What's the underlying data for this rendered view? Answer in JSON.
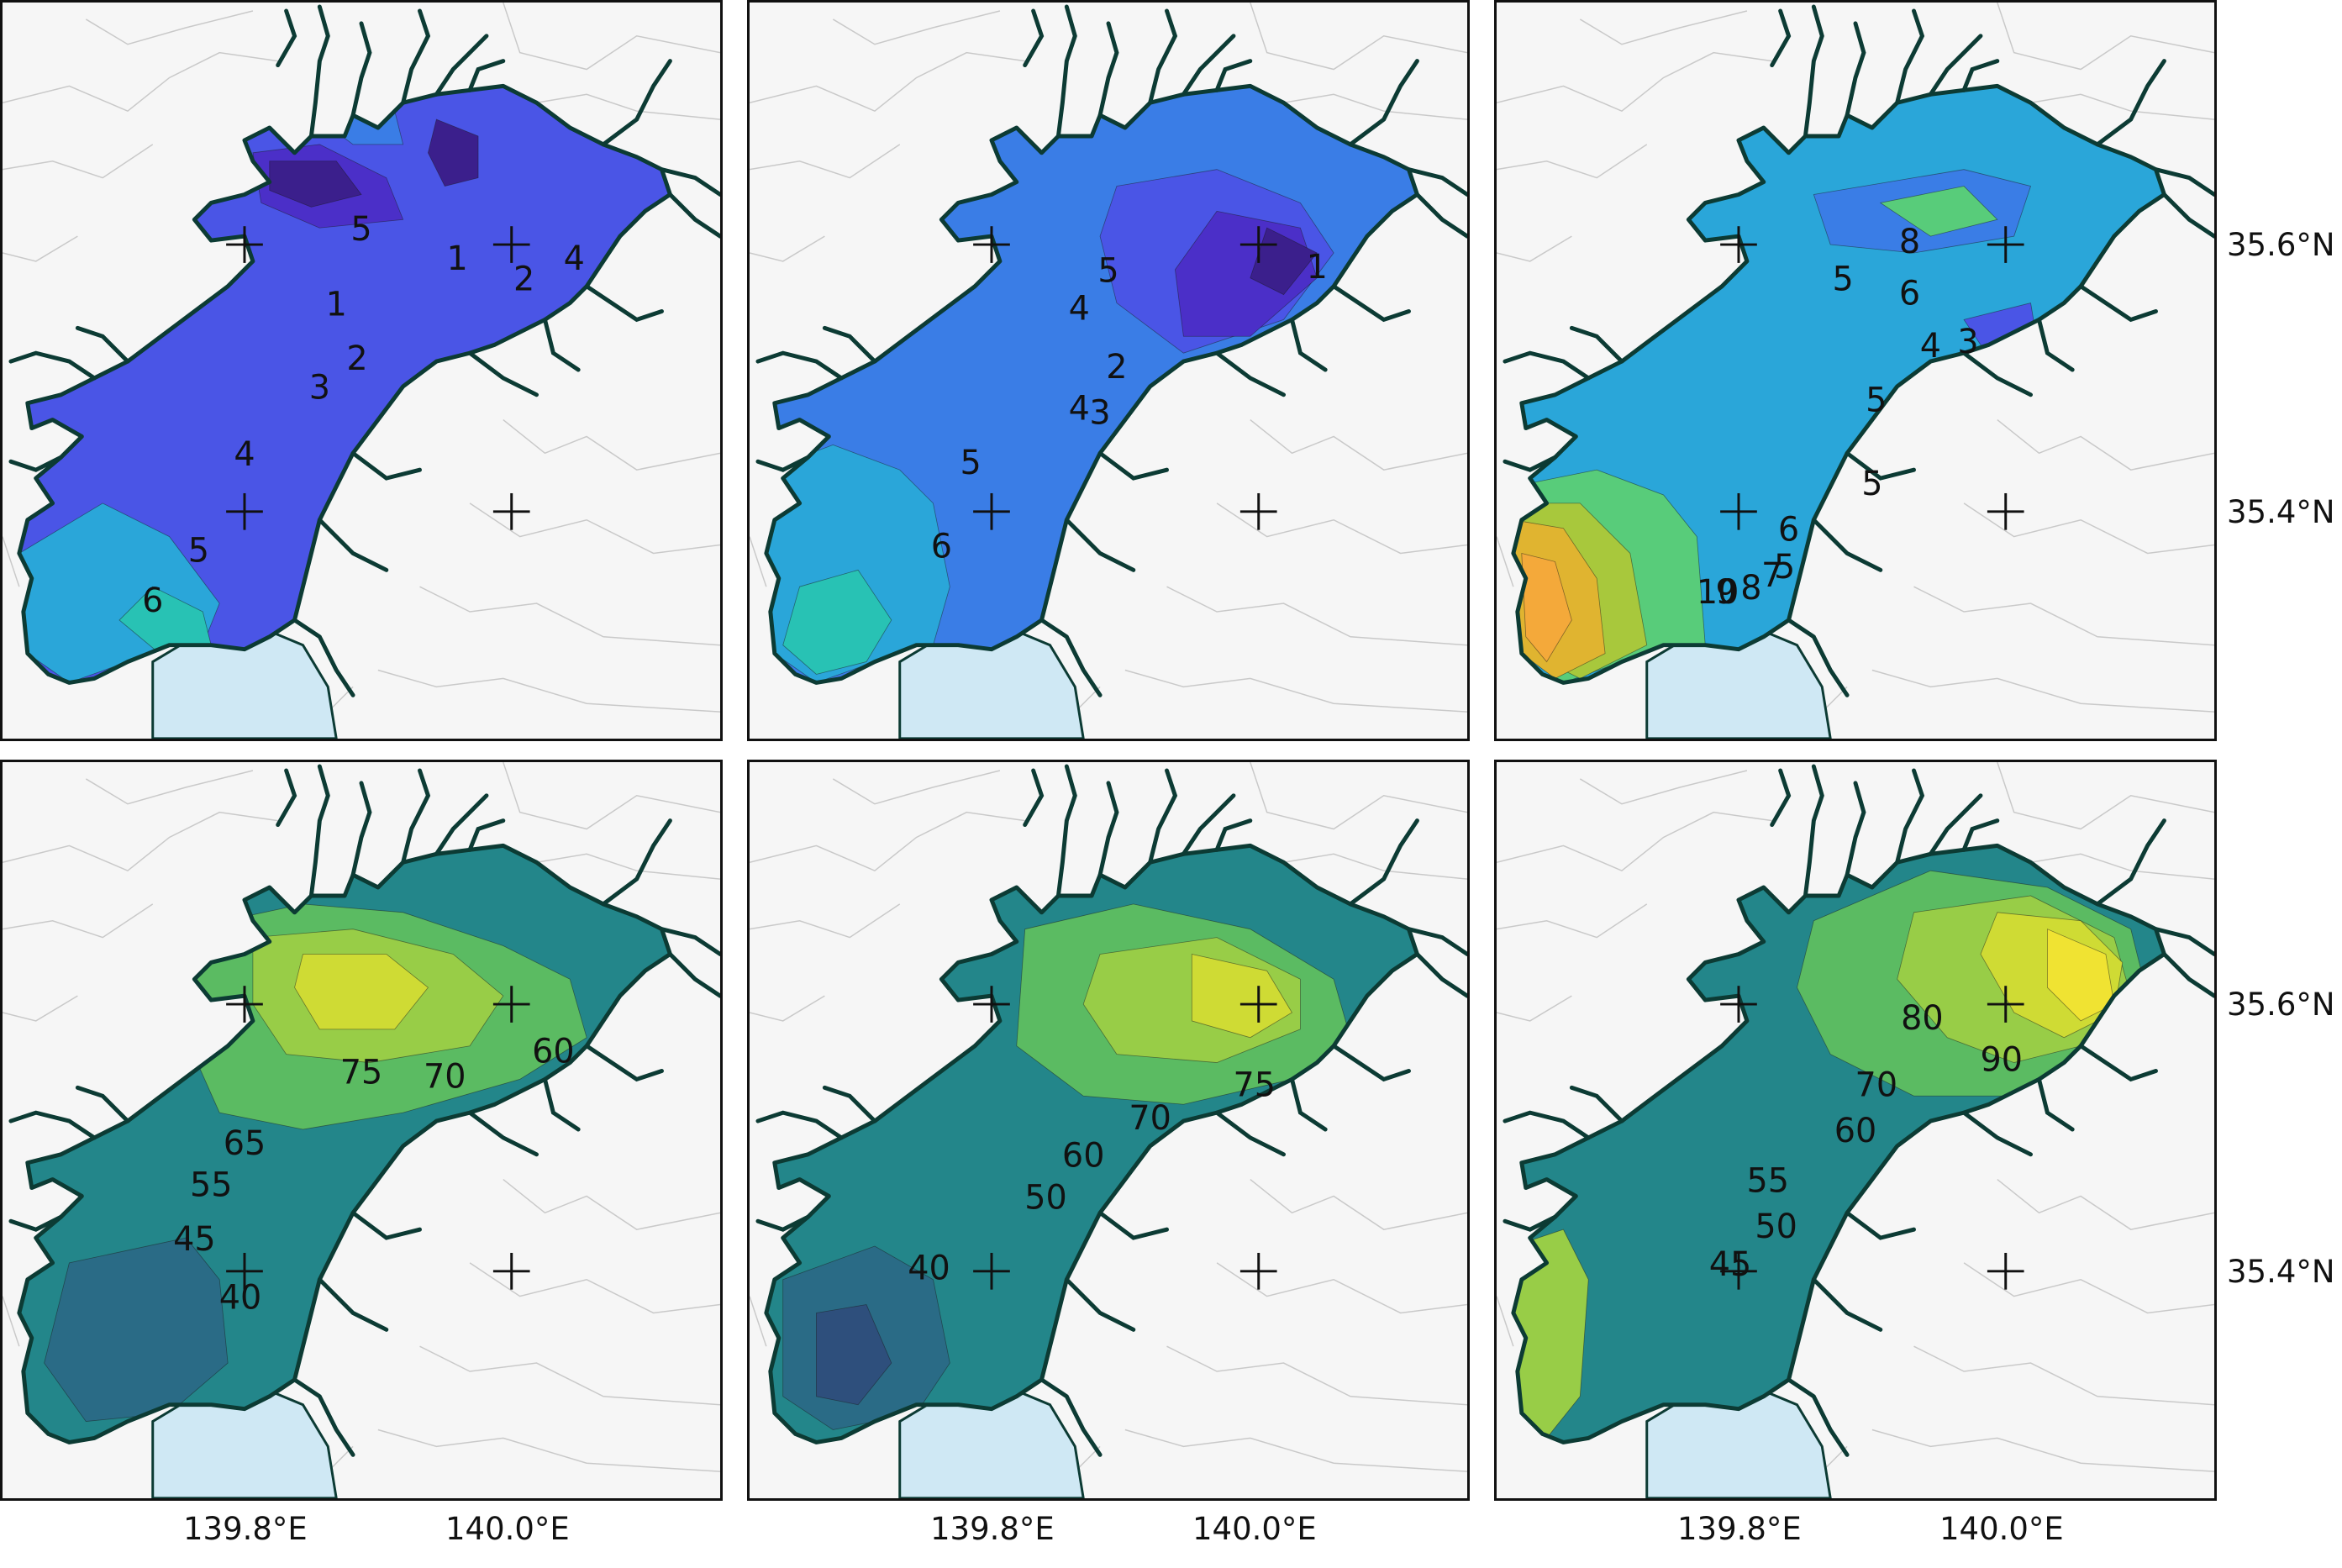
{
  "axes": {
    "lon_ticks": [
      "139.8°E",
      "140.0°E"
    ],
    "lat_ticks": [
      "35.6°N",
      "35.4°N"
    ]
  },
  "colormaps": {
    "top": [
      "#3b1f8c",
      "#4b2fc8",
      "#4a55e6",
      "#3a7de6",
      "#2aa6d9",
      "#28c2b4",
      "#58cc7a",
      "#a8c83c",
      "#e0b430",
      "#f4a93a"
    ],
    "bottom": [
      "#4a2070",
      "#2e4f7c",
      "#2a6b86",
      "#23868a",
      "#2aa27c",
      "#5bbb62",
      "#98cd47",
      "#cfdb34",
      "#f0e332"
    ]
  },
  "panels": [
    {
      "row": 0,
      "col": 0,
      "labels": [
        "5",
        "1",
        "2",
        "4",
        "1",
        "2",
        "3",
        "4",
        "5",
        "6"
      ]
    },
    {
      "row": 0,
      "col": 1,
      "labels": [
        "5",
        "4",
        "1",
        "2",
        "3",
        "4",
        "5",
        "6"
      ]
    },
    {
      "row": 0,
      "col": 2,
      "labels": [
        "8",
        "5",
        "6",
        "4",
        "3",
        "5",
        "5",
        "6",
        "5",
        "7",
        "8",
        "9",
        "10"
      ]
    },
    {
      "row": 1,
      "col": 0,
      "labels": [
        "75",
        "70",
        "60",
        "65",
        "55",
        "45",
        "40"
      ]
    },
    {
      "row": 1,
      "col": 1,
      "labels": [
        "75",
        "70",
        "60",
        "50",
        "40"
      ]
    },
    {
      "row": 1,
      "col": 2,
      "labels": [
        "80",
        "90",
        "70",
        "60",
        "55",
        "50",
        "45"
      ]
    }
  ]
}
